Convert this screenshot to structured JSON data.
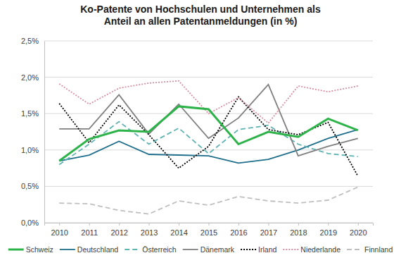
{
  "chart_data": {
    "type": "line",
    "title": "Ko-Patente von Hochschulen und Unternehmen als Anteil an allen Patentanmeldungen (in %)",
    "x": [
      2010,
      2011,
      2012,
      2013,
      2014,
      2015,
      2016,
      2017,
      2018,
      2019,
      2020
    ],
    "xlim": [
      2009.5,
      2020.5
    ],
    "xticks": [
      2010,
      2011,
      2012,
      2013,
      2014,
      2015,
      2016,
      2017,
      2018,
      2019,
      2020
    ],
    "ylim": [
      0,
      2.5
    ],
    "yticks": [
      {
        "value": 0,
        "label": "0,0%"
      },
      {
        "value": 0.5,
        "label": "0,5%"
      },
      {
        "value": 1,
        "label": "1,0%"
      },
      {
        "value": 1.5,
        "label": "1,5%"
      },
      {
        "value": 2,
        "label": "2,0%"
      },
      {
        "value": 2.5,
        "label": "2,5%"
      }
    ],
    "grid": true,
    "legend": "bottom",
    "series": [
      {
        "name": "Schweiz",
        "color": "#2db34a",
        "line_style": "solid",
        "values": [
          0.85,
          1.15,
          1.27,
          1.25,
          1.6,
          1.56,
          1.08,
          1.25,
          1.18,
          1.43,
          1.27
        ]
      },
      {
        "name": "Deutschland",
        "color": "#1f6e8c",
        "line_style": "solid",
        "values": [
          0.85,
          0.93,
          1.12,
          0.94,
          0.93,
          0.92,
          0.82,
          0.87,
          1.0,
          1.16,
          1.28
        ]
      },
      {
        "name": "Österreich",
        "color": "#5fb3b3",
        "line_style": "dashed",
        "values": [
          0.8,
          1.08,
          1.39,
          1.08,
          1.3,
          0.95,
          1.28,
          1.34,
          1.08,
          0.95,
          0.91
        ]
      },
      {
        "name": "Dänemark",
        "color": "#7f7f7f",
        "line_style": "solid",
        "values": [
          1.29,
          1.29,
          1.76,
          1.22,
          1.63,
          1.16,
          1.44,
          1.9,
          0.92,
          1.05,
          1.16
        ]
      },
      {
        "name": "Irland",
        "color": "#000000",
        "line_style": "dotted",
        "values": [
          1.64,
          1.1,
          1.62,
          1.21,
          0.75,
          1.05,
          1.73,
          1.28,
          1.21,
          1.38,
          0.64
        ]
      },
      {
        "name": "Niederlande",
        "color": "#d98fa0",
        "line_style": "dotted",
        "values": [
          1.91,
          1.63,
          1.85,
          1.92,
          1.95,
          1.5,
          1.72,
          1.37,
          1.88,
          1.8,
          1.88
        ]
      },
      {
        "name": "Finnland",
        "color": "#bfbfbf",
        "line_style": "dashed",
        "values": [
          0.27,
          0.26,
          0.17,
          0.12,
          0.3,
          0.24,
          0.36,
          0.3,
          0.27,
          0.31,
          0.49
        ]
      }
    ]
  }
}
